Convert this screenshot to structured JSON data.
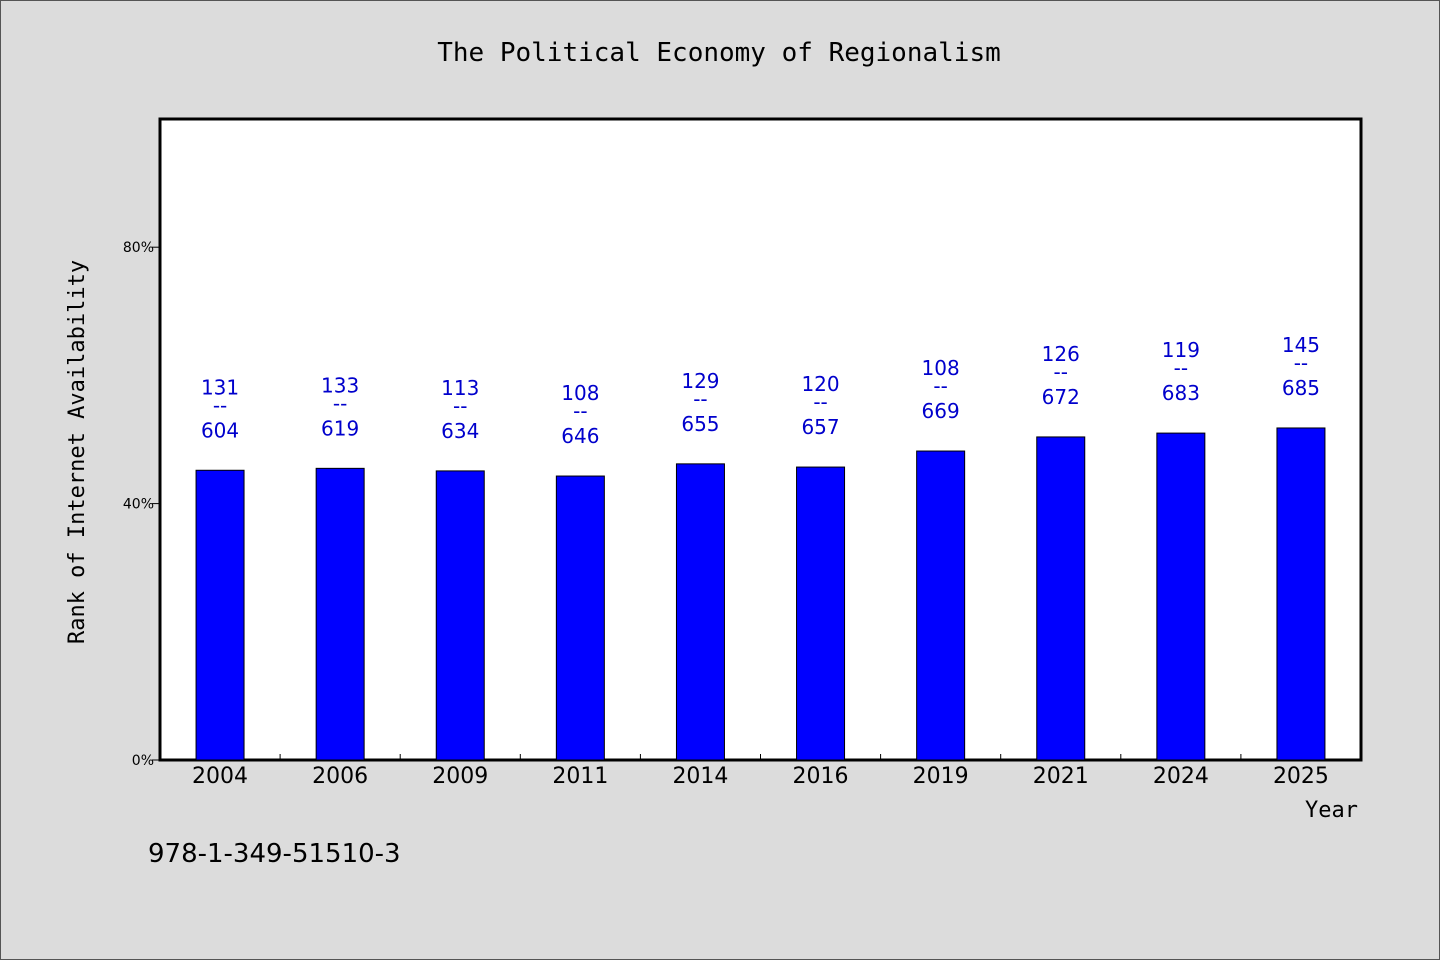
{
  "chart_data": {
    "type": "bar",
    "title": "The Political Economy of Regionalism",
    "xlabel": "Year",
    "ylabel": "Rank of Internet Availability",
    "categories": [
      "2004",
      "2006",
      "2009",
      "2011",
      "2014",
      "2016",
      "2019",
      "2021",
      "2024",
      "2025"
    ],
    "values": [
      45.2,
      45.5,
      45.1,
      44.3,
      46.2,
      45.7,
      48.2,
      50.4,
      51.0,
      51.8
    ],
    "data_labels": [
      {
        "top": "131",
        "sep": "--",
        "bottom": "604"
      },
      {
        "top": "133",
        "sep": "--",
        "bottom": "619"
      },
      {
        "top": "113",
        "sep": "--",
        "bottom": "634"
      },
      {
        "top": "108",
        "sep": "--",
        "bottom": "646"
      },
      {
        "top": "129",
        "sep": "--",
        "bottom": "655"
      },
      {
        "top": "120",
        "sep": "--",
        "bottom": "657"
      },
      {
        "top": "108",
        "sep": "--",
        "bottom": "669"
      },
      {
        "top": "126",
        "sep": "--",
        "bottom": "672"
      },
      {
        "top": "119",
        "sep": "--",
        "bottom": "683"
      },
      {
        "top": "145",
        "sep": "--",
        "bottom": "685"
      }
    ],
    "yticks": [
      0,
      40,
      80
    ],
    "ytick_labels": [
      "0%",
      "40%",
      "80%"
    ],
    "ylim": [
      0,
      100
    ],
    "grid": false,
    "bar_color": "#0000ff",
    "label_color": "#0000cc"
  },
  "footer": {
    "isbn": "978-1-349-51510-3"
  }
}
